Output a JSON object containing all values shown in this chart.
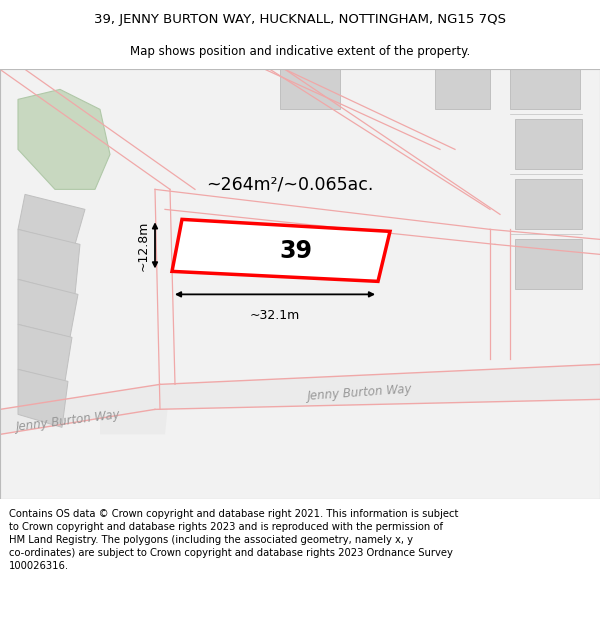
{
  "title_line1": "39, JENNY BURTON WAY, HUCKNALL, NOTTINGHAM, NG15 7QS",
  "title_line2": "Map shows position and indicative extent of the property.",
  "footer_text": "Contains OS data © Crown copyright and database right 2021. This information is subject to Crown copyright and database rights 2023 and is reproduced with the permission of HM Land Registry. The polygons (including the associated geometry, namely x, y co-ordinates) are subject to Crown copyright and database rights 2023 Ordnance Survey 100026316.",
  "map_bg": "#f2f2f2",
  "plot_color": "#ff0000",
  "road_color": "#f0a8a8",
  "road_color_dark": "#e89090",
  "building_color": "#d0d0d0",
  "building_edge": "#c0c0c0",
  "green_color": "#c8d8c0",
  "green_edge": "#b0c8a8",
  "area_label": "~264m²/~0.065ac.",
  "number_label": "39",
  "width_label": "~32.1m",
  "height_label": "~12.8m",
  "road_label1": "Jenny Burton Way",
  "road_label2": "Jenny Burton Way",
  "title_fontsize": 9.5,
  "subtitle_fontsize": 8.5,
  "footer_fontsize": 7.2
}
